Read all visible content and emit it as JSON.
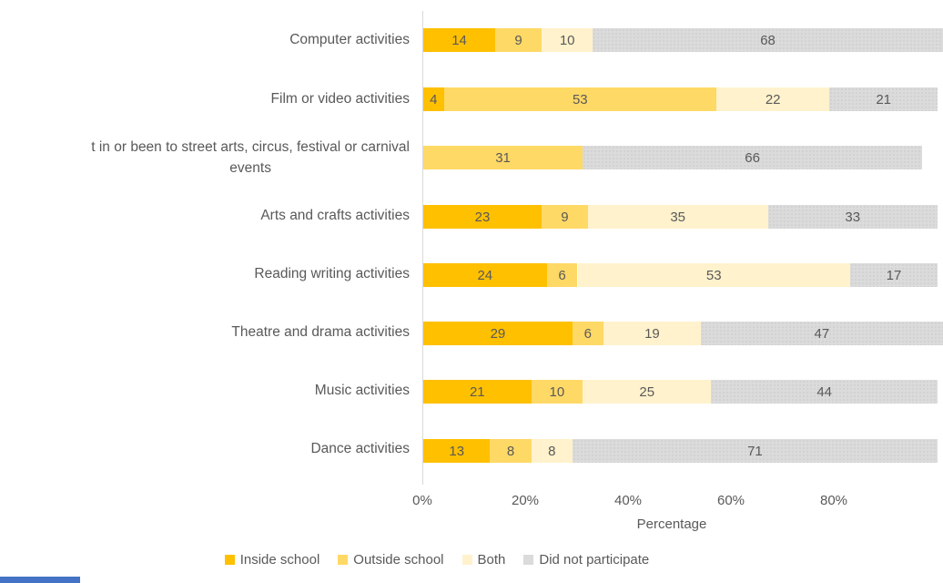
{
  "chart_data": {
    "type": "bar",
    "orientation": "horizontal",
    "stacked": true,
    "xlabel": "Percentage",
    "xlim": [
      0,
      100
    ],
    "x_ticks": [
      "0%",
      "20%",
      "40%",
      "60%",
      "80%"
    ],
    "grid": false,
    "legend_position": "bottom",
    "categories": [
      "Computer activities",
      "Film or video activities",
      "t in or been to street arts, circus, festival or carnival\nevents",
      "Arts and crafts activities",
      "Reading writing activities",
      "Theatre and drama activities",
      "Music activities",
      "Dance activities"
    ],
    "series": [
      {
        "name": "Inside school",
        "color": "#FFC000",
        "values": [
          14,
          4,
          0,
          23,
          24,
          29,
          21,
          13
        ]
      },
      {
        "name": "Outside school",
        "color": "#FFD966",
        "values": [
          9,
          53,
          31,
          9,
          6,
          6,
          10,
          8
        ]
      },
      {
        "name": "Both",
        "color": "#FFF2CC",
        "values": [
          10,
          22,
          0,
          35,
          53,
          19,
          25,
          8
        ]
      },
      {
        "name": "Did not participate",
        "color": "#DBDBDB",
        "values": [
          68,
          21,
          66,
          33,
          17,
          47,
          44,
          71
        ]
      }
    ]
  },
  "axis": {
    "ticks": [
      "0%",
      "20%",
      "40%",
      "60%",
      "80%"
    ],
    "title": "Percentage"
  },
  "legend": {
    "items": [
      {
        "label": "Inside school",
        "color": "#FFC000"
      },
      {
        "label": "Outside school",
        "color": "#FFD966"
      },
      {
        "label": "Both",
        "color": "#FFF2CC"
      },
      {
        "label": "Did not participate",
        "color": "#DBDBDB"
      }
    ]
  },
  "colors": {
    "text": "#595959",
    "axis_line": "#D9D9D9"
  }
}
